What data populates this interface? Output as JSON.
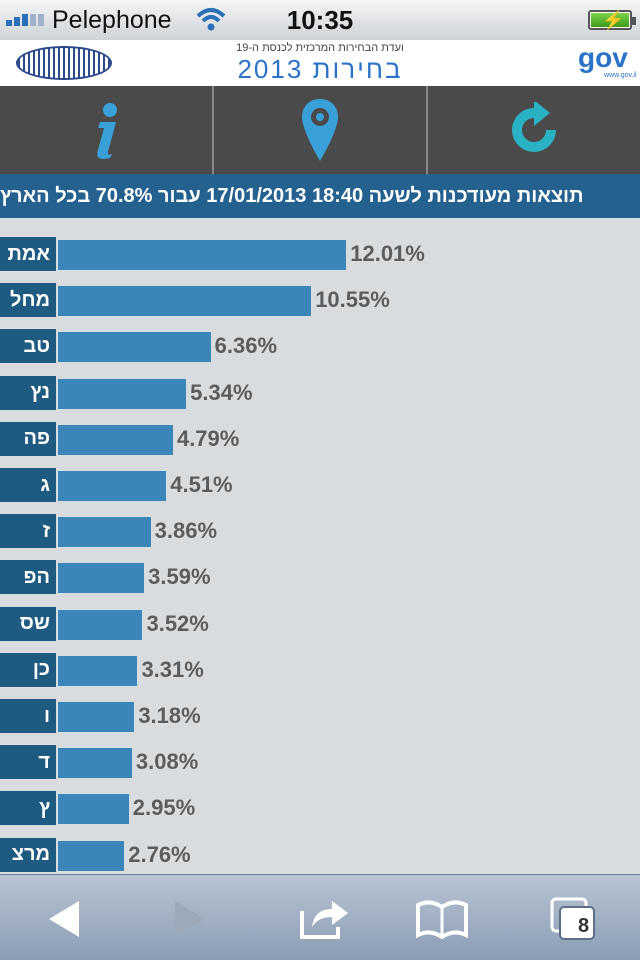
{
  "status_bar": {
    "carrier": "Pelephone",
    "time": "10:35",
    "wifi_icon": "wifi-icon",
    "battery_icon": "battery-charging-icon"
  },
  "header": {
    "subtitle": "ועדת הבחירות המרכזית לכנסת ה-19",
    "title": "בחירות 2013",
    "gov_logo": "gov",
    "gov_url": "www.gov.il",
    "knesset_logo": "knesset-logo"
  },
  "toolbar": {
    "buttons": [
      {
        "icon": "info-icon"
      },
      {
        "icon": "location-pin-icon"
      },
      {
        "icon": "refresh-icon"
      }
    ]
  },
  "results_header": "תוצאות מעודכנות לשעה 18:40 17/01/2013 עבור 70.8% בכל הארץ",
  "chart_data": {
    "type": "bar",
    "orientation": "horizontal",
    "categories": [
      "אמת",
      "מחל",
      "טב",
      "נץ",
      "פה",
      "ג",
      "ז",
      "הפ",
      "שס",
      "כן",
      "ו",
      "ד",
      "ץ",
      "מרצ"
    ],
    "values": [
      12.01,
      10.55,
      6.36,
      5.34,
      4.79,
      4.51,
      3.86,
      3.59,
      3.52,
      3.31,
      3.18,
      3.08,
      2.95,
      2.76
    ],
    "labels": [
      "12.01%",
      "10.55%",
      "6.36%",
      "5.34%",
      "4.79%",
      "4.51%",
      "3.86%",
      "3.59%",
      "3.52%",
      "3.31%",
      "3.18%",
      "3.08%",
      "2.95%",
      "2.76%"
    ],
    "colors": {
      "bar": "#3a86b8",
      "tag": "#1f5b80",
      "label": "#5c5c5c"
    }
  },
  "bottom_bar": {
    "tab_count": "8",
    "icons": [
      "back-icon",
      "forward-icon",
      "share-icon",
      "bookmarks-icon",
      "tabs-icon"
    ]
  }
}
